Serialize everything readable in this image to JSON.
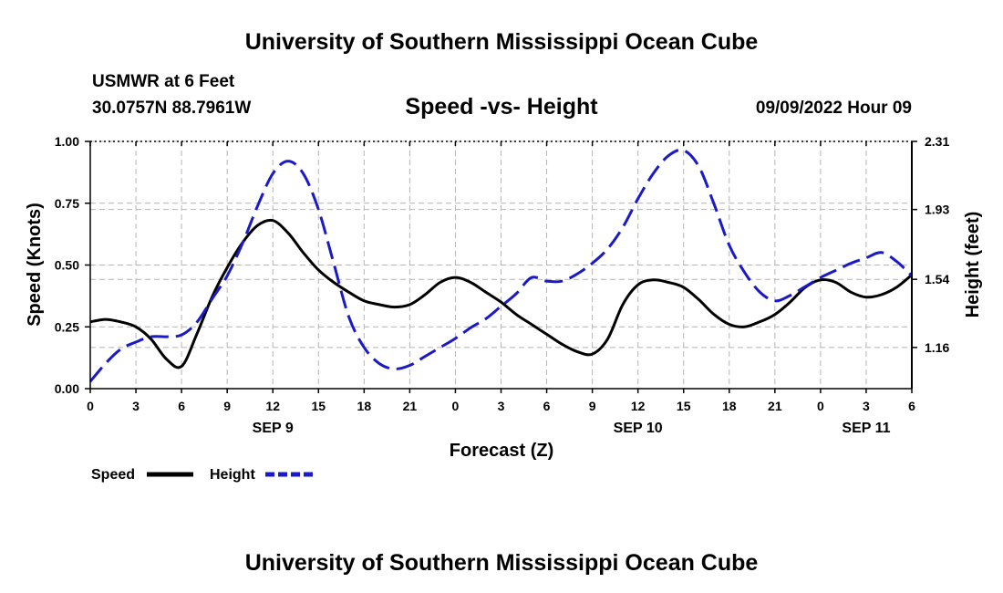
{
  "header": {
    "title": "University of Southern Mississippi Ocean Cube",
    "station": "USMWR at 6 Feet",
    "coords": "30.0757N  88.7961W",
    "datetime": "09/09/2022 Hour 09",
    "footer_title": "University of Southern Mississippi Ocean Cube"
  },
  "legend": {
    "speed_label": "Speed",
    "height_label": "Height"
  },
  "colors": {
    "speed": "#000000",
    "height": "#1a1ac8",
    "grid": "#b4b4b4",
    "axis": "#000000"
  },
  "chart_data": {
    "type": "line",
    "title": "Speed -vs- Height",
    "xlabel": "Forecast (Z)",
    "ylabel_left": "Speed (Knots)",
    "ylabel_right": "Height (feet)",
    "x_range_hours": [
      0,
      54
    ],
    "ylim_left": [
      0,
      1.0
    ],
    "ylim_right": [
      0.93,
      2.31
    ],
    "x_ticks": [
      {
        "hour": 0,
        "label": "0"
      },
      {
        "hour": 3,
        "label": "3"
      },
      {
        "hour": 6,
        "label": "6"
      },
      {
        "hour": 9,
        "label": "9"
      },
      {
        "hour": 12,
        "label": "12"
      },
      {
        "hour": 15,
        "label": "15"
      },
      {
        "hour": 18,
        "label": "18"
      },
      {
        "hour": 21,
        "label": "21"
      },
      {
        "hour": 24,
        "label": "0"
      },
      {
        "hour": 27,
        "label": "3"
      },
      {
        "hour": 30,
        "label": "6"
      },
      {
        "hour": 33,
        "label": "9"
      },
      {
        "hour": 36,
        "label": "12"
      },
      {
        "hour": 39,
        "label": "15"
      },
      {
        "hour": 42,
        "label": "18"
      },
      {
        "hour": 45,
        "label": "21"
      },
      {
        "hour": 48,
        "label": "0"
      },
      {
        "hour": 51,
        "label": "3"
      },
      {
        "hour": 54,
        "label": "6"
      }
    ],
    "day_labels": [
      {
        "hour": 12,
        "label": "SEP 9"
      },
      {
        "hour": 36,
        "label": "SEP 10"
      },
      {
        "hour": 51,
        "label": "SEP 11"
      }
    ],
    "y_left_ticks": [
      {
        "value": 0.0,
        "label": "0.00"
      },
      {
        "value": 0.25,
        "label": "0.25"
      },
      {
        "value": 0.5,
        "label": "0.50"
      },
      {
        "value": 0.75,
        "label": "0.75"
      },
      {
        "value": 1.0,
        "label": "1.00"
      }
    ],
    "y_right_ticks": [
      {
        "value": 1.16,
        "label": "1.16"
      },
      {
        "value": 1.54,
        "label": "1.54"
      },
      {
        "value": 1.93,
        "label": "1.93"
      },
      {
        "value": 2.31,
        "label": "2.31"
      }
    ],
    "series": [
      {
        "name": "Speed",
        "axis": "left",
        "hours": [
          0,
          1,
          2,
          3,
          4,
          5,
          6,
          7,
          8,
          9,
          10,
          11,
          12,
          13,
          14,
          15,
          16,
          17,
          18,
          19,
          20,
          21,
          22,
          23,
          24,
          25,
          26,
          27,
          28,
          29,
          30,
          31,
          32,
          33,
          34,
          35,
          36,
          37,
          38,
          39,
          40,
          41,
          42,
          43,
          44,
          45,
          46,
          47,
          48,
          49,
          50,
          51,
          52,
          53,
          54
        ],
        "values": [
          0.27,
          0.28,
          0.27,
          0.25,
          0.2,
          0.12,
          0.09,
          0.22,
          0.37,
          0.49,
          0.59,
          0.66,
          0.68,
          0.63,
          0.55,
          0.48,
          0.43,
          0.39,
          0.355,
          0.34,
          0.33,
          0.34,
          0.38,
          0.43,
          0.45,
          0.43,
          0.39,
          0.35,
          0.3,
          0.26,
          0.22,
          0.18,
          0.15,
          0.14,
          0.2,
          0.34,
          0.42,
          0.44,
          0.43,
          0.41,
          0.36,
          0.3,
          0.26,
          0.25,
          0.27,
          0.3,
          0.35,
          0.41,
          0.44,
          0.43,
          0.39,
          0.37,
          0.38,
          0.41,
          0.46
        ]
      },
      {
        "name": "Height",
        "axis": "right",
        "hours": [
          0,
          1,
          2,
          3,
          4,
          5,
          6,
          7,
          8,
          9,
          10,
          11,
          12,
          13,
          14,
          15,
          16,
          17,
          18,
          19,
          20,
          21,
          22,
          23,
          24,
          25,
          26,
          27,
          28,
          29,
          30,
          31,
          32,
          33,
          34,
          35,
          36,
          37,
          38,
          39,
          40,
          41,
          42,
          43,
          44,
          45,
          46,
          47,
          48,
          49,
          50,
          51,
          52,
          53,
          54
        ],
        "values": [
          0.97,
          1.07,
          1.15,
          1.19,
          1.22,
          1.22,
          1.23,
          1.3,
          1.43,
          1.56,
          1.74,
          1.95,
          2.13,
          2.2,
          2.13,
          1.93,
          1.63,
          1.33,
          1.16,
          1.07,
          1.04,
          1.06,
          1.11,
          1.16,
          1.21,
          1.27,
          1.32,
          1.39,
          1.46,
          1.55,
          1.53,
          1.53,
          1.57,
          1.63,
          1.71,
          1.83,
          1.99,
          2.13,
          2.23,
          2.26,
          2.17,
          1.96,
          1.73,
          1.58,
          1.47,
          1.42,
          1.45,
          1.5,
          1.55,
          1.59,
          1.63,
          1.66,
          1.69,
          1.64,
          1.56
        ]
      }
    ]
  }
}
